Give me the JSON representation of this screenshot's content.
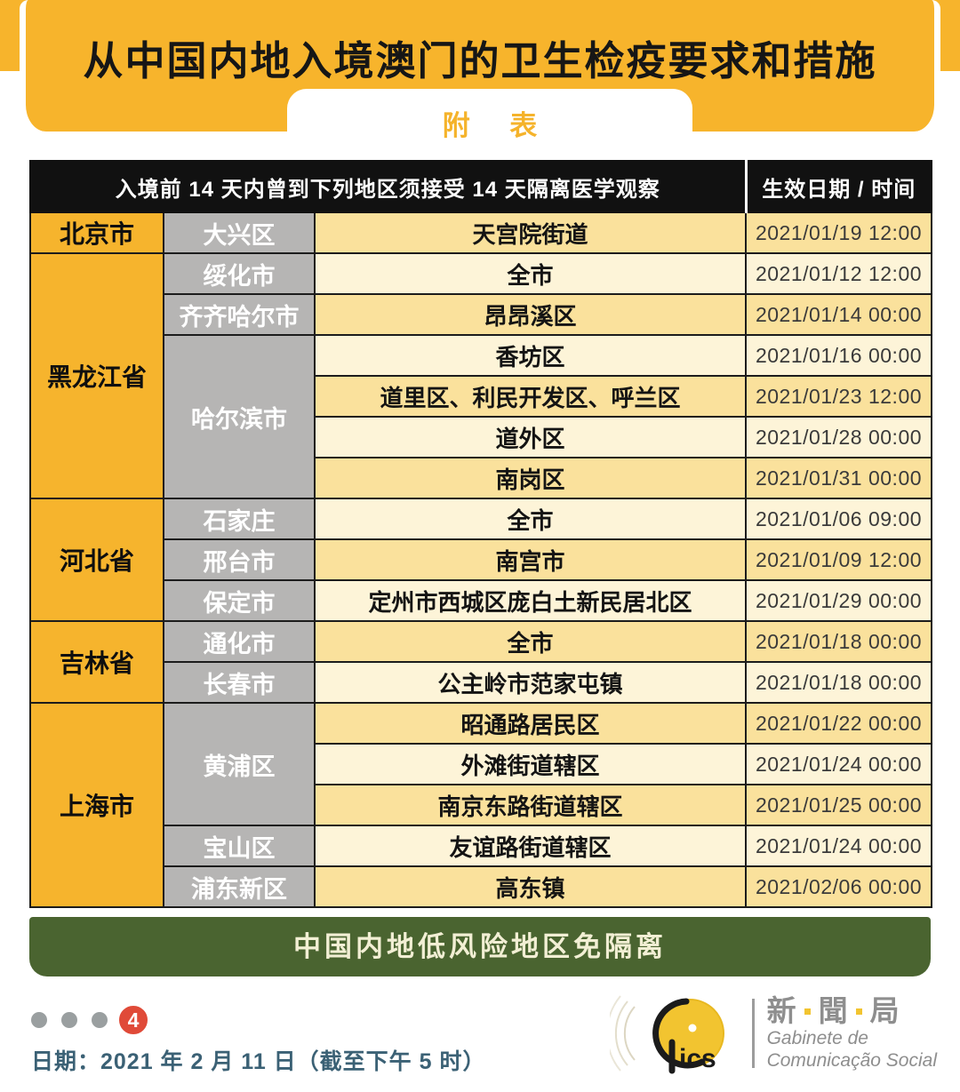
{
  "banner": {
    "title": "从中国内地入境澳门的卫生检疫要求和措施",
    "tab_label": "附 表"
  },
  "table": {
    "header_main": "入境前 14 天内曾到下列地区须接受 14 天隔离医学观察",
    "header_date": "生效日期 / 时间",
    "groups": [
      {
        "province": "北京市",
        "cities": [
          {
            "name": "大兴区",
            "areas": [
              {
                "area": "天宫院街道",
                "date": "2021/01/19 12:00"
              }
            ]
          }
        ]
      },
      {
        "province": "黑龙江省",
        "cities": [
          {
            "name": "绥化市",
            "areas": [
              {
                "area": "全市",
                "date": "2021/01/12 12:00"
              }
            ]
          },
          {
            "name": "齐齐哈尔市",
            "areas": [
              {
                "area": "昂昂溪区",
                "date": "2021/01/14 00:00"
              }
            ]
          },
          {
            "name": "哈尔滨市",
            "areas": [
              {
                "area": "香坊区",
                "date": "2021/01/16 00:00"
              },
              {
                "area": "道里区、利民开发区、呼兰区",
                "date": "2021/01/23 12:00"
              },
              {
                "area": "道外区",
                "date": "2021/01/28 00:00"
              },
              {
                "area": "南岗区",
                "date": "2021/01/31 00:00"
              }
            ]
          }
        ]
      },
      {
        "province": "河北省",
        "cities": [
          {
            "name": "石家庄",
            "areas": [
              {
                "area": "全市",
                "date": "2021/01/06 09:00"
              }
            ]
          },
          {
            "name": "邢台市",
            "areas": [
              {
                "area": "南宫市",
                "date": "2021/01/09 12:00"
              }
            ]
          },
          {
            "name": "保定市",
            "areas": [
              {
                "area": "定州市西城区庞白土新民居北区",
                "date": "2021/01/29 00:00"
              }
            ]
          }
        ]
      },
      {
        "province": "吉林省",
        "cities": [
          {
            "name": "通化市",
            "areas": [
              {
                "area": "全市",
                "date": "2021/01/18 00:00"
              }
            ]
          },
          {
            "name": "长春市",
            "areas": [
              {
                "area": "公主岭市范家屯镇",
                "date": "2021/01/18 00:00"
              }
            ]
          }
        ]
      },
      {
        "province": "上海市",
        "cities": [
          {
            "name": "黄浦区",
            "areas": [
              {
                "area": "昭通路居民区",
                "date": "2021/01/22 00:00"
              },
              {
                "area": "外滩街道辖区",
                "date": "2021/01/24 00:00"
              },
              {
                "area": "南京东路街道辖区",
                "date": "2021/01/25 00:00"
              }
            ]
          },
          {
            "name": "宝山区",
            "areas": [
              {
                "area": "友谊路街道辖区",
                "date": "2021/01/24 00:00"
              }
            ]
          },
          {
            "name": "浦东新区",
            "areas": [
              {
                "area": "高东镇",
                "date": "2021/02/06 00:00"
              }
            ]
          }
        ]
      }
    ]
  },
  "green_banner": {
    "label": "中国内地低风险地区免隔离"
  },
  "footer": {
    "page_number": "4",
    "date_line": "日期：2021 年 2 月 11 日（截至下午 5 时）",
    "logo": {
      "mark_letters": "ics",
      "cjk_chars": [
        "新",
        "聞",
        "局"
      ],
      "latin_line1": "Gabinete de",
      "latin_line2": "Comunicação Social"
    }
  },
  "colors": {
    "banner_yellow": "#F7B42C",
    "province_yellow": "#F6B42D",
    "city_gray": "#B6B5B4",
    "row_dark": "#FAE19C",
    "row_light": "#FDF4D8",
    "header_black": "#111111",
    "green": "#4A6430",
    "badge_red": "#E04A38",
    "footer_blue": "#3B6175",
    "logo_gray": "#8E8E8E",
    "logo_yellow": "#F2C430"
  }
}
